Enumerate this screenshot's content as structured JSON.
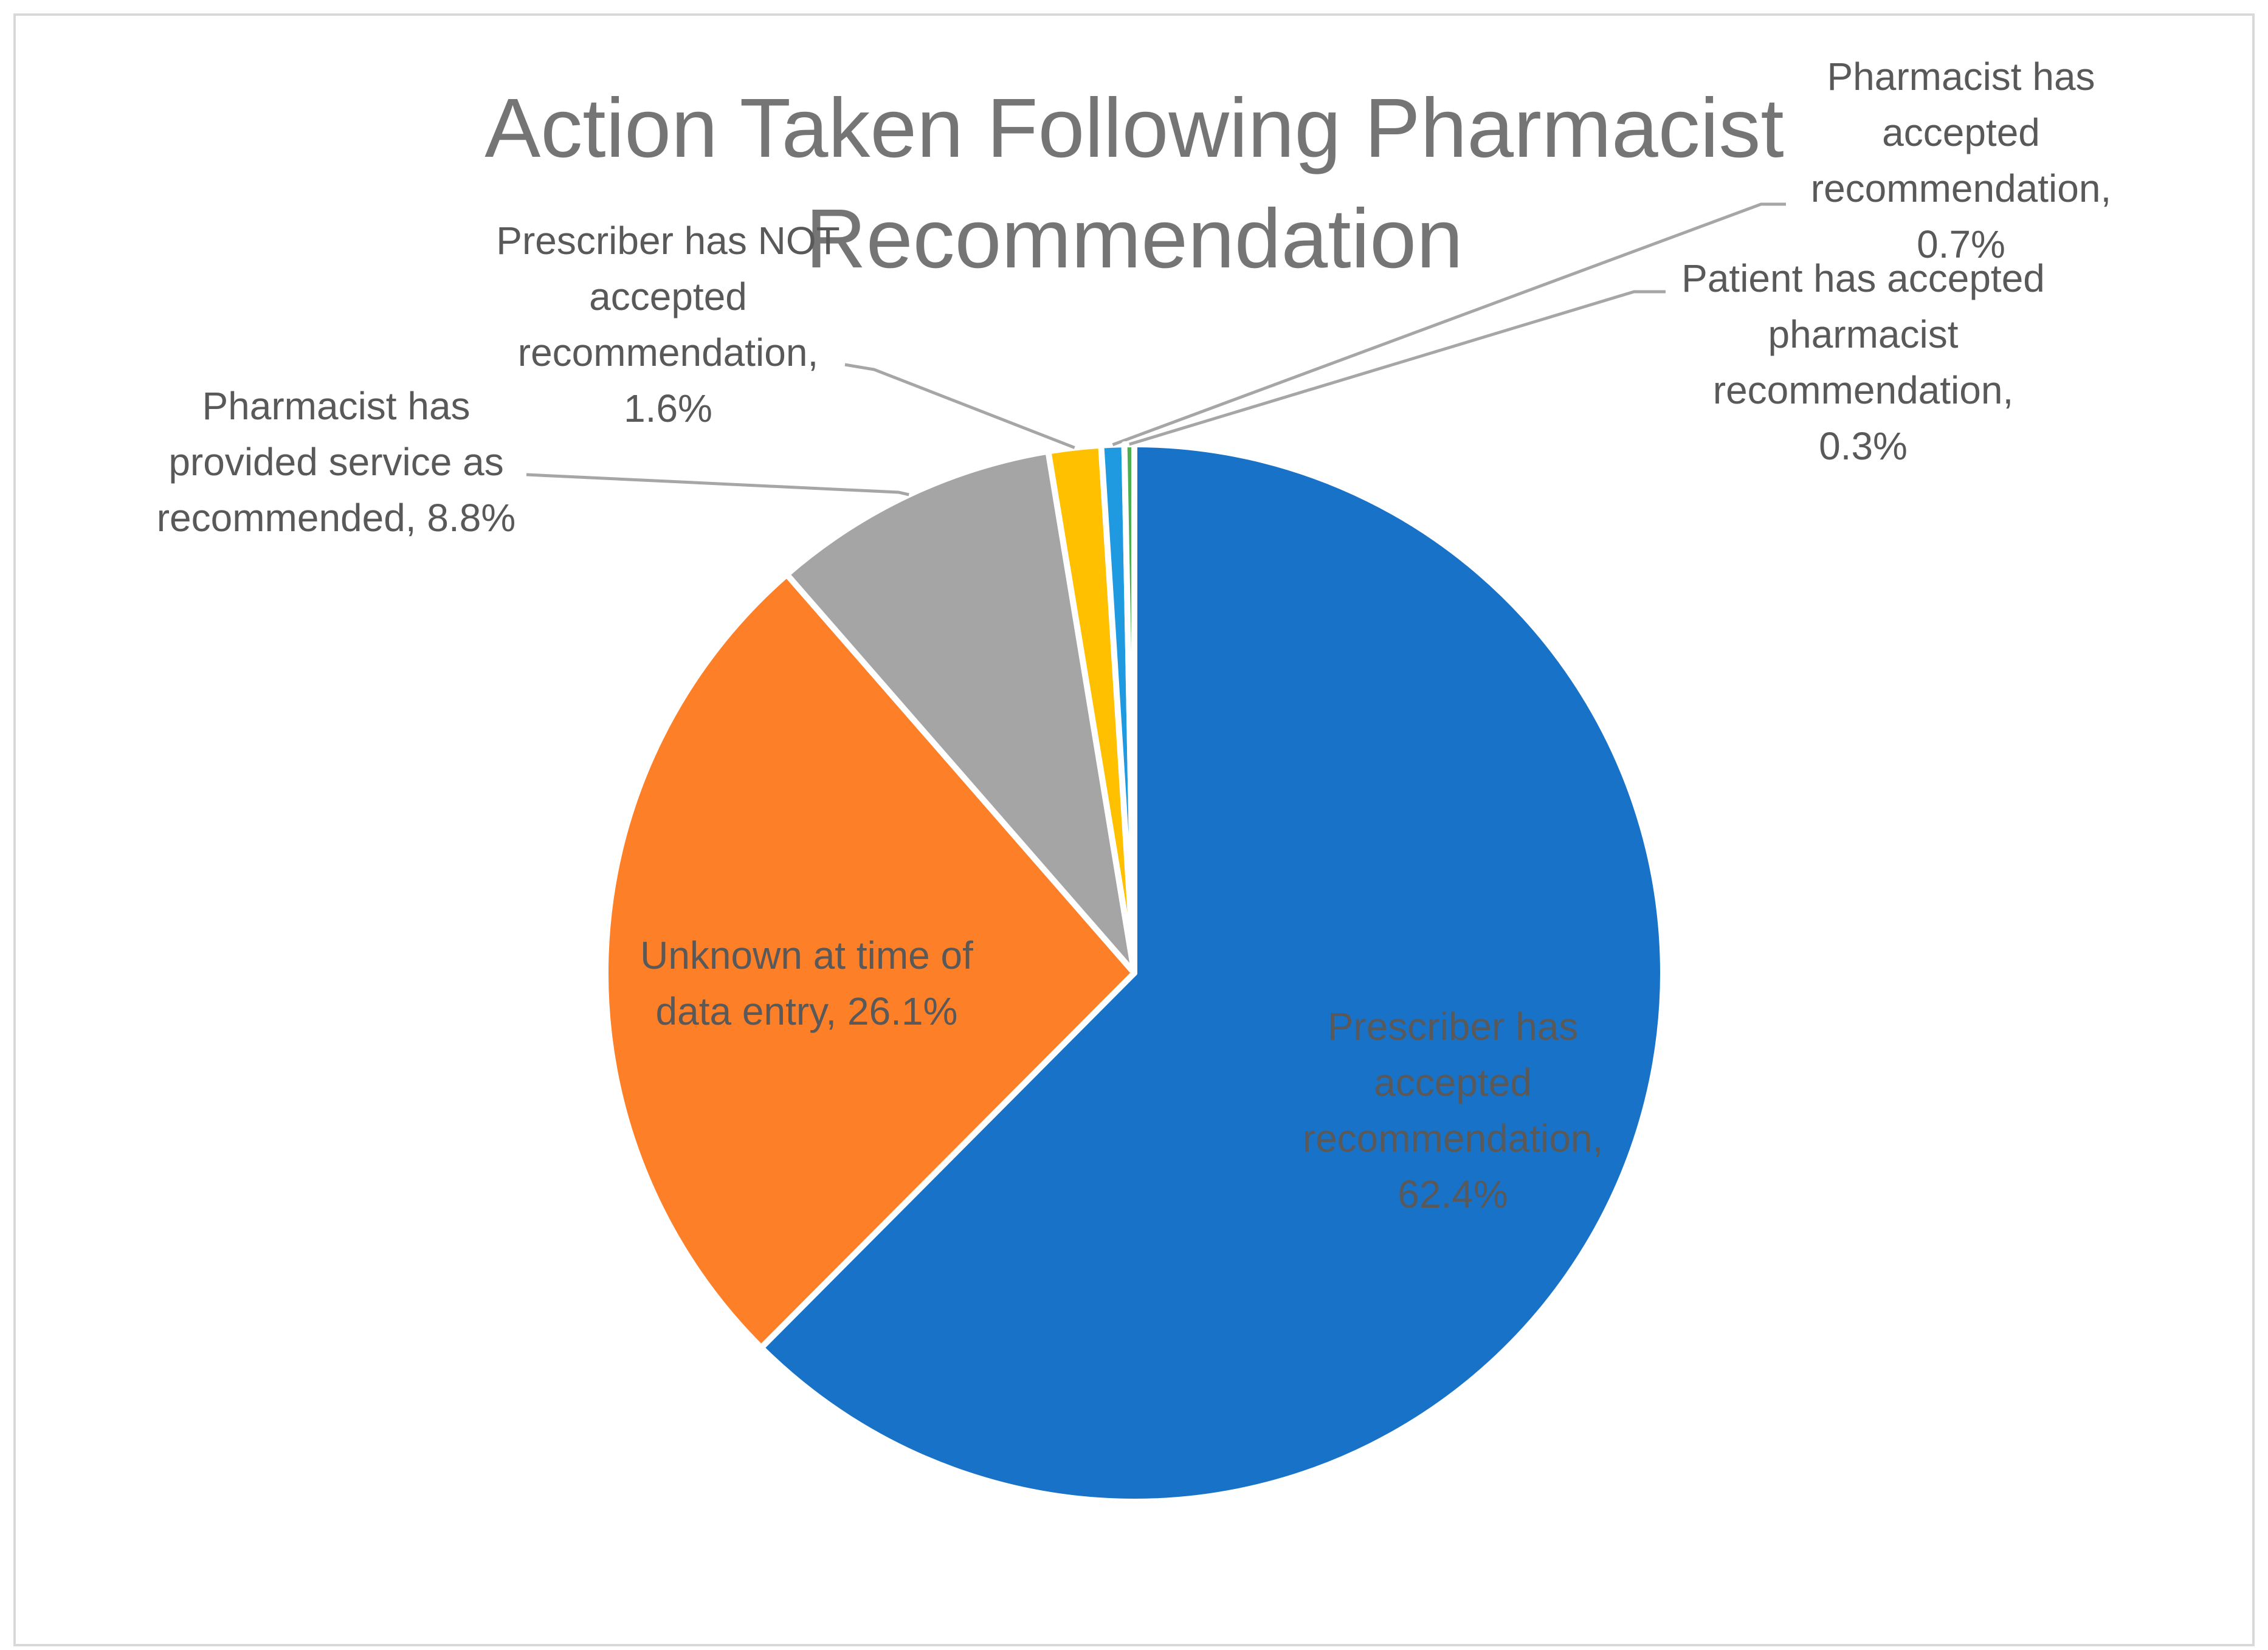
{
  "chart_data": {
    "type": "pie",
    "title": "Action Taken Following Pharmacist Recommendation",
    "values": [
      62.4,
      26.1,
      8.8,
      1.6,
      0.7,
      0.3
    ],
    "value_labels": [
      "Prescriber has accepted recommendation, 62.4%",
      "Unknown at time of data entry, 26.1%",
      "Pharmacist has provided service as recommended, 8.8%",
      "Prescriber has NOT accepted recommendation, 1.6%",
      "Pharmacist has accepted recommendation, 0.7%",
      "Patient has accepted pharmacist recommendation, 0.3%"
    ],
    "colors": [
      "#1872c8",
      "#fd7f28",
      "#a5a5a5",
      "#ffc000",
      "#1f9ae0",
      "#4caf50"
    ]
  }
}
